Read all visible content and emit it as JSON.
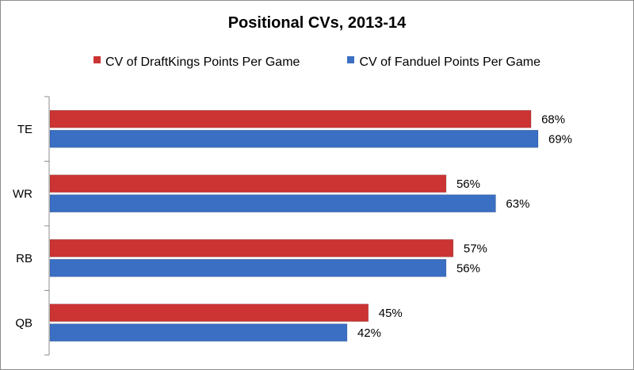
{
  "chart_data": {
    "type": "bar",
    "orientation": "horizontal",
    "title": "Positional CVs, 2013-14",
    "categories": [
      "TE",
      "WR",
      "RB",
      "QB"
    ],
    "series": [
      {
        "name": "CV of DraftKings Points Per Game",
        "values": [
          68,
          56,
          57,
          45
        ],
        "labels": [
          "68%",
          "56%",
          "57%",
          "45%"
        ],
        "color": "#cc3333"
      },
      {
        "name": "CV of Fanduel Points Per Game",
        "values": [
          69,
          63,
          56,
          42
        ],
        "labels": [
          "69%",
          "63%",
          "56%",
          "42%"
        ],
        "color": "#3a6fc4"
      }
    ],
    "xlim": [
      0,
      69
    ],
    "legend_position": "top",
    "grid": false
  }
}
